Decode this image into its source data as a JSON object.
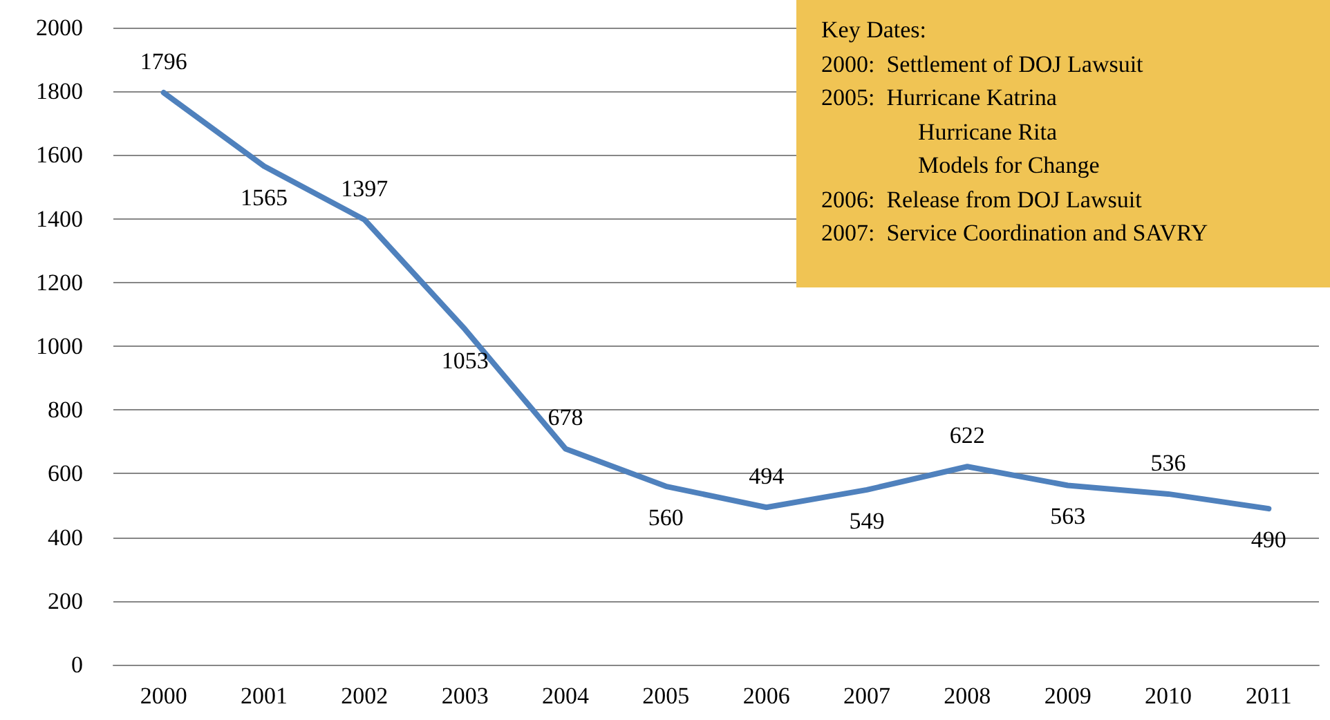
{
  "chart_data": {
    "type": "line",
    "categories": [
      "2000",
      "2001",
      "2002",
      "2003",
      "2004",
      "2005",
      "2006",
      "2007",
      "2008",
      "2009",
      "2010",
      "2011"
    ],
    "series": [
      {
        "color": "#4f81bd",
        "values": [
          1796,
          1565,
          1397,
          1053,
          678,
          560,
          494,
          549,
          622,
          563,
          536,
          490
        ]
      }
    ],
    "ylim": [
      0,
      2000
    ],
    "yticks": [
      0,
      200,
      400,
      600,
      800,
      1000,
      1200,
      1400,
      1600,
      1800,
      2000
    ],
    "grid": "y",
    "marker": "none",
    "line_style": "solid",
    "data_labels": true,
    "annotations": [
      "Key Dates:",
      "2000:  Settlement of DOJ Lawsuit",
      "2005:  Hurricane Katrina",
      "Hurricane Rita",
      "Models for Change",
      "2006:  Release from DOJ Lawsuit",
      "2007:  Service Coordination and SAVRY"
    ]
  }
}
